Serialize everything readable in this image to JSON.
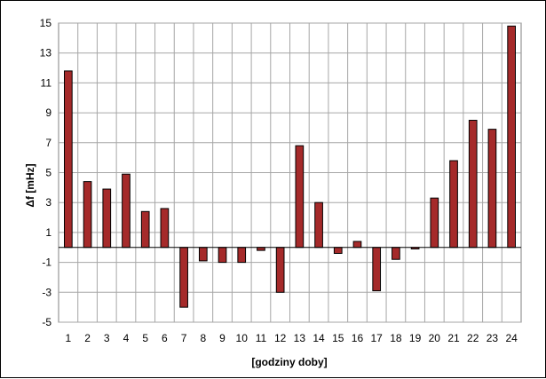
{
  "chart_data": {
    "type": "bar",
    "title": "",
    "xlabel": "[godziny doby]",
    "ylabel": "Δf [mHz]",
    "categories": [
      "1",
      "2",
      "3",
      "4",
      "5",
      "6",
      "7",
      "8",
      "9",
      "10",
      "11",
      "12",
      "13",
      "14",
      "15",
      "16",
      "17",
      "18",
      "19",
      "20",
      "21",
      "22",
      "23",
      "24"
    ],
    "series": [
      {
        "values": [
          11.8,
          4.4,
          3.9,
          4.9,
          2.4,
          2.6,
          -4.0,
          -0.9,
          -1.0,
          -1.0,
          -0.2,
          -3.0,
          6.8,
          3.0,
          -0.4,
          0.4,
          -2.9,
          -0.8,
          -0.1,
          3.3,
          5.8,
          8.5,
          7.9,
          14.8
        ],
        "color": "#a52a2a"
      }
    ],
    "ylim": [
      -5,
      15
    ],
    "yticks": [
      -5,
      -3,
      -1,
      1,
      3,
      5,
      7,
      9,
      11,
      13,
      15
    ],
    "grid": true,
    "legend": "none"
  }
}
